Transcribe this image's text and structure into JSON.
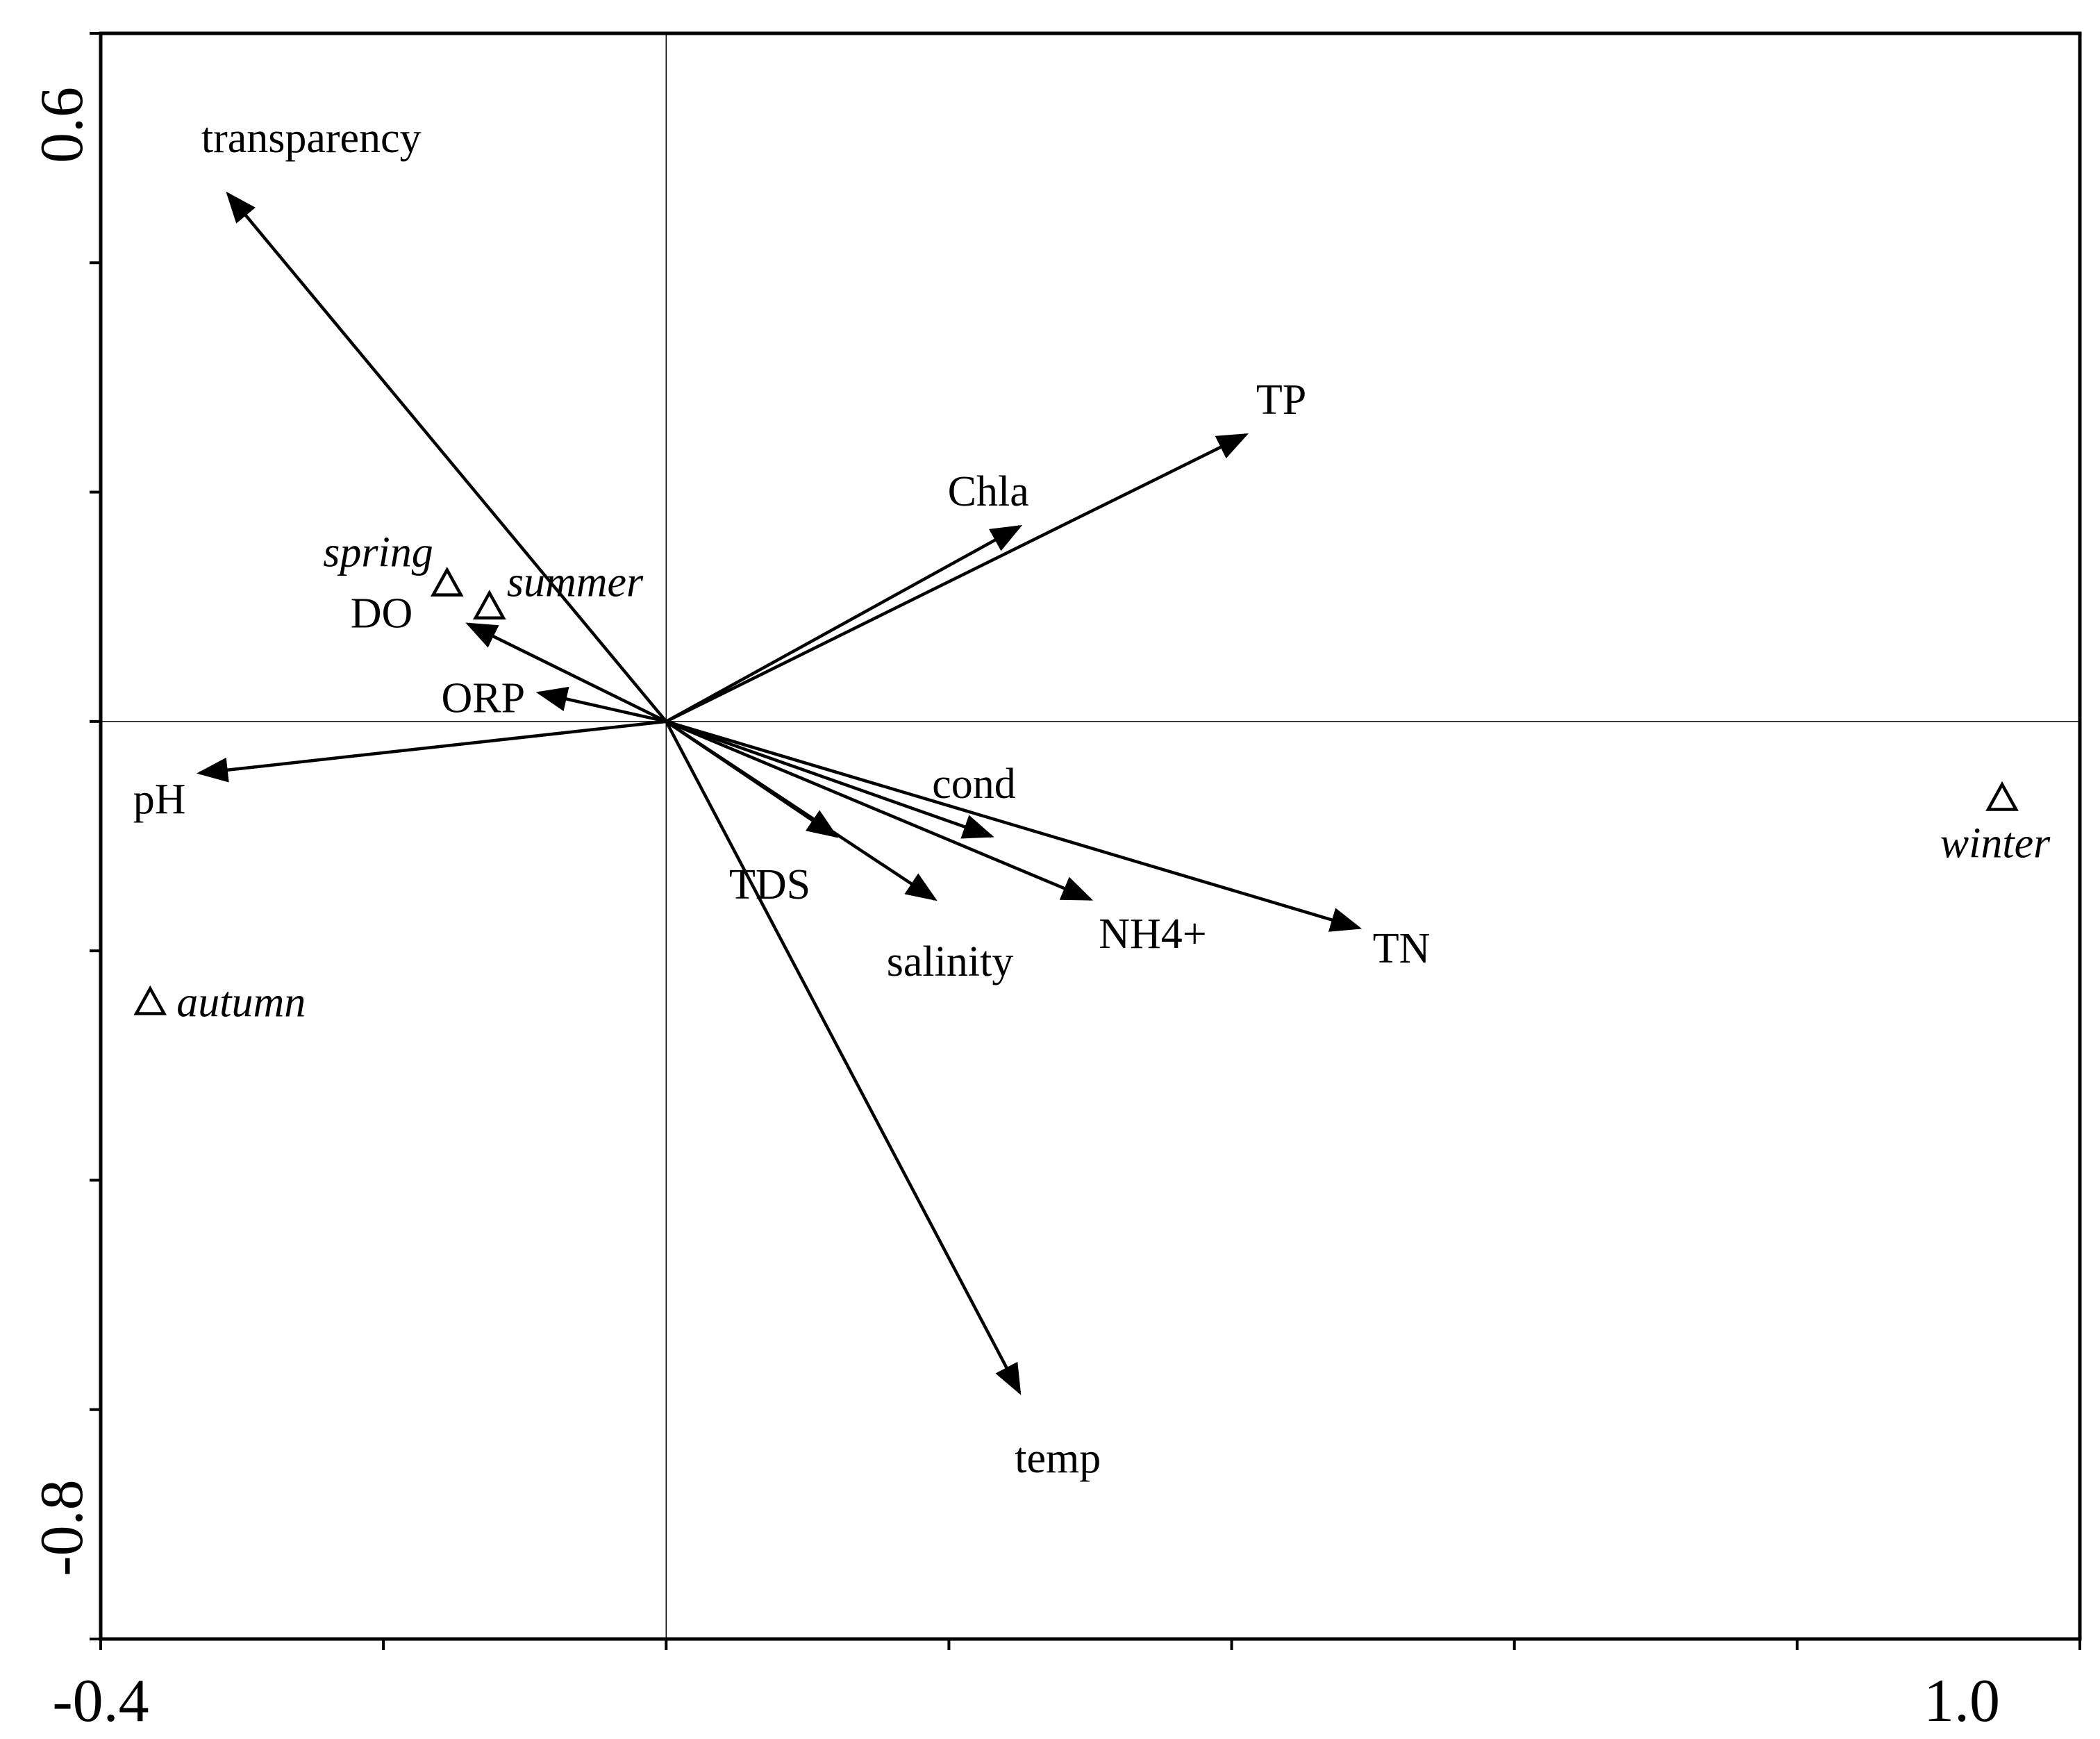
{
  "chart_data": {
    "type": "scatter",
    "subtype": "ordination biplot (environmental vectors and sample points)",
    "title": "",
    "xlabel": "",
    "ylabel": "",
    "xlim": [
      -0.4,
      1.0
    ],
    "ylim": [
      -0.8,
      0.6
    ],
    "x_tick_labels": [
      "-0.4",
      "1.0"
    ],
    "y_tick_labels": [
      "0.6",
      "-0.8"
    ],
    "x_ticks": [
      -0.4,
      -0.2,
      0.0,
      0.2,
      0.4,
      0.6,
      0.8,
      1.0
    ],
    "y_ticks": [
      0.6,
      0.4,
      0.2,
      0.0,
      -0.2,
      -0.4,
      -0.6,
      -0.8
    ],
    "reference_lines": {
      "x": 0.0,
      "y": 0.0
    },
    "grid": false,
    "legend": "none",
    "arrow_origin": [
      0.0,
      0.0
    ],
    "vectors": [
      {
        "name": "transparency",
        "x": -0.31,
        "y": 0.46
      },
      {
        "name": "TP",
        "x": 0.41,
        "y": 0.25
      },
      {
        "name": "Chla",
        "x": 0.25,
        "y": 0.17
      },
      {
        "name": "DO",
        "x": -0.14,
        "y": 0.085
      },
      {
        "name": "ORP",
        "x": -0.09,
        "y": 0.025
      },
      {
        "name": "pH",
        "x": -0.33,
        "y": -0.045
      },
      {
        "name": "cond",
        "x": 0.23,
        "y": -0.1
      },
      {
        "name": "TDS",
        "x": 0.12,
        "y": -0.1
      },
      {
        "name": "salinity",
        "x": 0.19,
        "y": -0.155
      },
      {
        "name": "NH4+",
        "x": 0.3,
        "y": -0.155
      },
      {
        "name": "TN",
        "x": 0.49,
        "y": -0.18
      },
      {
        "name": "temp",
        "x": 0.25,
        "y": -0.585
      }
    ],
    "points": [
      {
        "name": "spring",
        "x": -0.155,
        "y": 0.12
      },
      {
        "name": "summer",
        "x": -0.125,
        "y": 0.1
      },
      {
        "name": "winter",
        "x": 0.945,
        "y": -0.067
      },
      {
        "name": "autumn",
        "x": -0.365,
        "y": -0.245
      }
    ],
    "colors": {
      "ink": "#000000",
      "background": "#ffffff"
    }
  }
}
